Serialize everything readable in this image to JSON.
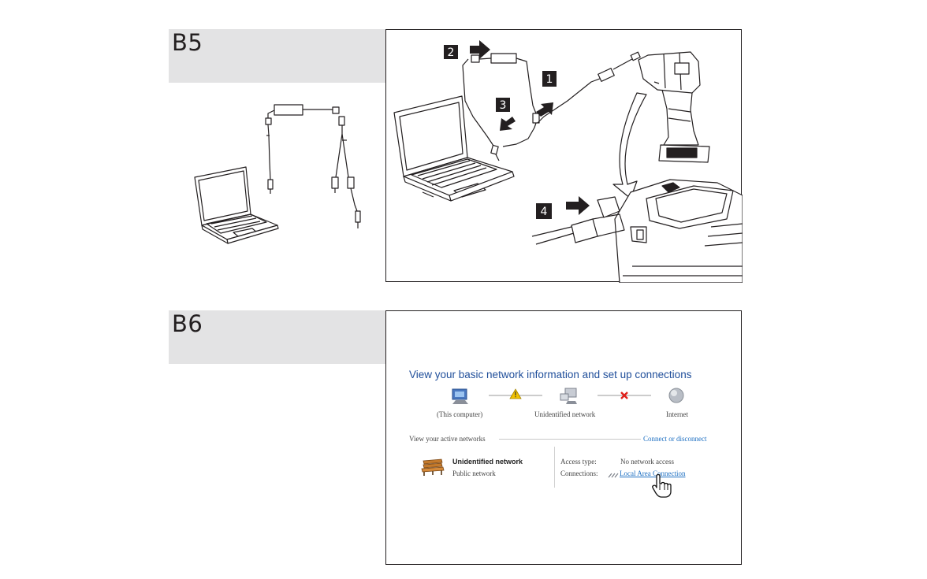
{
  "sections": {
    "b5": {
      "title": "B5"
    },
    "b6": {
      "title": "B6"
    }
  },
  "steps": [
    "1",
    "2",
    "3",
    "4"
  ],
  "network": {
    "heading": "View your basic network information and set up connections",
    "nodes": {
      "computer": "(This computer)",
      "network": "Unidentified network",
      "internet": "Internet"
    },
    "active_networks_label": "View your active networks",
    "connect_link": "Connect or disconnect",
    "network_name": "Unidentified network",
    "network_type": "Public network",
    "access_type_label": "Access type:",
    "access_type_value": "No network access",
    "connections_label": "Connections:",
    "connections_value": "Local Area Connection"
  },
  "colors": {
    "header_bg": "#e3e3e4",
    "link_blue": "#1d6fc2",
    "heading_blue": "#1f4e9a",
    "warning_yellow": "#f2c200",
    "error_red": "#e0201b"
  }
}
